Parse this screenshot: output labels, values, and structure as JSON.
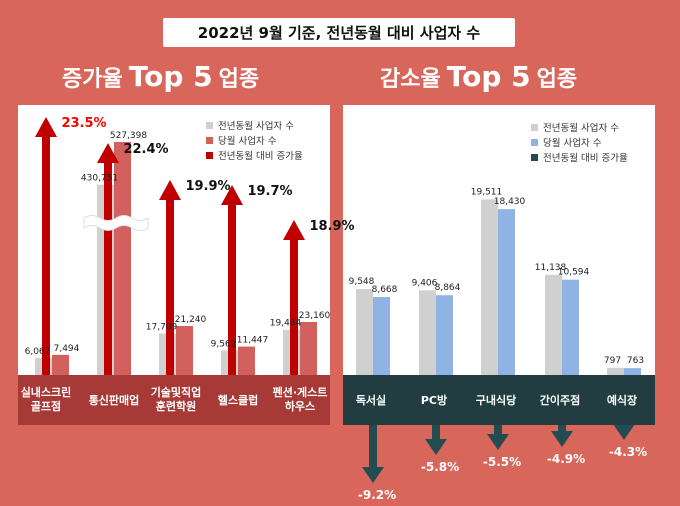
{
  "header": {
    "title": "2022년 9월 기준, 전년동월 대비 사업자 수"
  },
  "left": {
    "heading_prefix": "증가율",
    "heading_top": "Top 5",
    "heading_suffix": "업종",
    "legend": [
      "전년동월 사업자 수",
      "당월 사업자 수",
      "전년동월 대비 증가율"
    ]
  },
  "right": {
    "heading_prefix": "감소율",
    "heading_top": "Top 5",
    "heading_suffix": "업종",
    "legend": [
      "전년동월 사업자 수",
      "당월 사업자 수",
      "전년동월 대비 증가율"
    ]
  },
  "colors": {
    "background": "#d9665b",
    "prev_bar": "#d0d0d0",
    "cur_bar_increase": "#d2605c",
    "cur_bar_decrease": "#8fb4e3",
    "arrow_increase": "#c00000",
    "arrow_decrease": "#244b52",
    "label_band_left": "#a73a37",
    "label_band_right": "#213d42",
    "highlight_pct": "#ff0000"
  },
  "chart_data": [
    {
      "type": "bar",
      "categories": [
        "실내스크린골프점",
        "통신판매업",
        "기술및직업훈련학원",
        "헬스클럽",
        "펜션·게스트하우스"
      ],
      "category_lines": [
        [
          "실내스크린",
          "골프점"
        ],
        [
          "통신판매업"
        ],
        [
          "기술및직업",
          "훈련학원"
        ],
        [
          "헬스클럽"
        ],
        [
          "펜션·게스트",
          "하우스"
        ]
      ],
      "series": [
        {
          "name": "전년동월 사업자 수",
          "values": [
            6067,
            430751,
            17709,
            9562,
            19484
          ],
          "labels": [
            "6,067",
            "430,751",
            "17,709",
            "9,562",
            "19,484"
          ]
        },
        {
          "name": "당월 사업자 수",
          "values": [
            7494,
            527398,
            21240,
            11447,
            23160
          ],
          "labels": [
            "7,494",
            "527,398",
            "21,240",
            "11,447",
            "23,160"
          ]
        },
        {
          "name": "전년동월 대비 증가율",
          "values": [
            23.5,
            22.4,
            19.9,
            19.7,
            18.9
          ],
          "labels": [
            "23.5%",
            "22.4%",
            "19.9%",
            "19.7%",
            "18.9%"
          ]
        }
      ]
    },
    {
      "type": "bar",
      "categories": [
        "독서실",
        "PC방",
        "구내식당",
        "간이주점",
        "예식장"
      ],
      "category_lines": [
        [
          "독서실"
        ],
        [
          "PC방"
        ],
        [
          "구내식당"
        ],
        [
          "간이주점"
        ],
        [
          "예식장"
        ]
      ],
      "series": [
        {
          "name": "전년동월 사업자 수",
          "values": [
            9548,
            9406,
            19511,
            11138,
            797
          ],
          "labels": [
            "9,548",
            "9,406",
            "19,511",
            "11,138",
            "797"
          ]
        },
        {
          "name": "당월 사업자 수",
          "values": [
            8668,
            8864,
            18430,
            10594,
            763
          ],
          "labels": [
            "8,668",
            "8,864",
            "18,430",
            "10,594",
            "763"
          ]
        },
        {
          "name": "전년동월 대비 증가율",
          "values": [
            -9.2,
            -5.8,
            -5.5,
            -4.9,
            -4.3
          ],
          "labels": [
            "-9.2%",
            "-5.8%",
            "-5.5%",
            "-4.9%",
            "-4.3%"
          ]
        }
      ]
    }
  ]
}
